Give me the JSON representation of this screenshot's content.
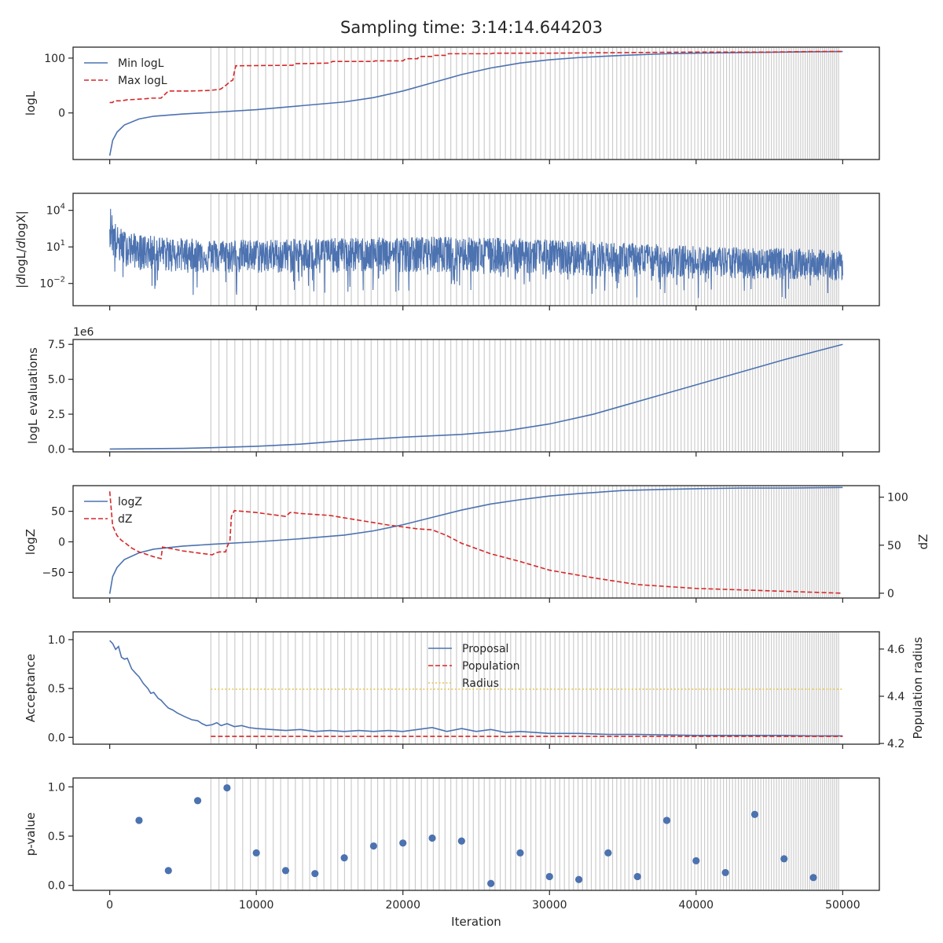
{
  "title": "Sampling time: 3:14:14.644203",
  "colors": {
    "blue": "#4c72b0",
    "red": "#d62728",
    "yellow": "#e8c547",
    "grid": "#cccccc",
    "axis": "#262626"
  },
  "chart_data": [
    {
      "type": "line",
      "ylabel": "logL",
      "xlim": [
        -2500,
        52500
      ],
      "ylim": [
        -85,
        120
      ],
      "yticks": [
        "0",
        "100"
      ],
      "legend": "top-left",
      "series": [
        {
          "name": "Min logL",
          "style": "solid",
          "color": "#4c72b0",
          "x": [
            0,
            200,
            500,
            1000,
            2000,
            3000,
            5000,
            7000,
            10000,
            13000,
            16000,
            18000,
            20000,
            22000,
            24000,
            26000,
            28000,
            30000,
            32000,
            35000,
            38000,
            40000,
            43000,
            46000,
            50000
          ],
          "y": [
            -78,
            -50,
            -35,
            -22,
            -11,
            -6,
            -2,
            1,
            6,
            13,
            20,
            28,
            40,
            55,
            70,
            82,
            91,
            97,
            101,
            105,
            108,
            109,
            110,
            111,
            112
          ]
        },
        {
          "name": "Max logL",
          "style": "dashed",
          "color": "#d62728",
          "x": [
            0,
            200,
            300,
            800,
            1200,
            1300,
            2500,
            2800,
            3000,
            3200,
            3500,
            4000,
            5500,
            6800,
            7500,
            7600,
            8000,
            8200,
            8400,
            8500,
            8600,
            12500,
            12600,
            13000,
            13300,
            15000,
            15200,
            18000,
            18100,
            20000,
            20200,
            21000,
            21100,
            22000,
            22100,
            23000,
            23100,
            26000,
            26200,
            30000,
            35000,
            40000,
            45000,
            48000,
            50000
          ],
          "y": [
            19,
            19,
            22,
            22,
            24,
            24,
            26,
            27,
            27,
            27,
            27,
            40,
            40,
            41,
            43,
            44,
            52,
            57,
            60,
            75,
            86,
            87,
            90,
            90,
            90,
            91,
            94,
            94,
            95,
            95,
            99,
            99,
            103,
            103,
            105,
            105,
            108,
            108,
            109,
            109,
            110,
            111,
            111,
            112,
            112
          ]
        }
      ]
    },
    {
      "type": "line",
      "ylabel": "|dlogL/dlogX|",
      "yscale": "log",
      "xlim": [
        -2500,
        52500
      ],
      "ylim": [
        0.00015,
        250000
      ],
      "yticks": [
        "10^4",
        "10^1",
        "10^-2"
      ],
      "series": [
        {
          "name": "",
          "style": "solid",
          "color": "#4c72b0",
          "x": [
            0,
            200,
            500,
            1000,
            2000,
            4000,
            7000,
            10000,
            14000,
            18000,
            22000,
            26000,
            30000,
            34000,
            38000,
            42000,
            46000,
            50000
          ],
          "upper": [
            25000,
            2000,
            500,
            200,
            100,
            60,
            40,
            40,
            50,
            60,
            70,
            60,
            40,
            25,
            15,
            10,
            8,
            5
          ],
          "median": [
            800,
            60,
            20,
            10,
            5,
            3,
            2,
            2,
            2.5,
            3,
            3.5,
            2.5,
            1.5,
            1,
            0.7,
            0.5,
            0.4,
            0.3
          ],
          "lower": [
            0.05,
            0.01,
            0.005,
            0.003,
            0.002,
            0.001,
            0.001,
            0.001,
            0.001,
            0.001,
            0.001,
            0.001,
            0.0008,
            0.0006,
            0.0005,
            0.0005,
            0.0005,
            0.0005
          ]
        }
      ]
    },
    {
      "type": "line",
      "ylabel": "logL evaluations",
      "offset_text": "1e6",
      "xlim": [
        -2500,
        52500
      ],
      "ylim": [
        -0.2,
        7.85
      ],
      "yticks": [
        "0.0",
        "2.5",
        "5.0",
        "7.5"
      ],
      "series": [
        {
          "name": "",
          "style": "solid",
          "color": "#4c72b0",
          "x": [
            0,
            5000,
            7000,
            10000,
            13000,
            16000,
            20000,
            24000,
            27000,
            30000,
            33000,
            36000,
            40000,
            43000,
            46000,
            50000
          ],
          "y": [
            0.0,
            0.05,
            0.1,
            0.2,
            0.35,
            0.6,
            0.85,
            1.05,
            1.3,
            1.8,
            2.5,
            3.4,
            4.6,
            5.5,
            6.4,
            7.5
          ]
        }
      ]
    },
    {
      "type": "line",
      "ylabel": "logZ",
      "y2label": "dZ",
      "xlim": [
        -2500,
        52500
      ],
      "ylim": [
        -92,
        92
      ],
      "y2lim": [
        -5,
        112
      ],
      "yticks": [
        "50",
        "0",
        "−50"
      ],
      "y2ticks": [
        "100",
        "50",
        "0"
      ],
      "legend": "top-left",
      "series": [
        {
          "name": "logZ",
          "style": "solid",
          "color": "#4c72b0",
          "axis": "left",
          "x": [
            0,
            200,
            500,
            1000,
            2000,
            3000,
            5000,
            7000,
            10000,
            13000,
            16000,
            18000,
            20000,
            22000,
            24000,
            26000,
            28000,
            30000,
            32000,
            35000,
            38000,
            40000,
            43000,
            46000,
            50000
          ],
          "y": [
            -85,
            -57,
            -42,
            -29,
            -18,
            -12,
            -7,
            -4,
            0,
            5,
            11,
            18,
            28,
            40,
            52,
            62,
            69,
            75,
            79,
            84,
            86,
            87,
            88,
            88,
            89
          ]
        },
        {
          "name": "dZ",
          "style": "dashed",
          "color": "#d62728",
          "axis": "right",
          "x": [
            0,
            200,
            500,
            800,
            1000,
            1500,
            2000,
            3000,
            3500,
            3600,
            4000,
            5000,
            6000,
            7000,
            7200,
            7500,
            7900,
            8000,
            8200,
            8300,
            8500,
            10000,
            12000,
            12300,
            12500,
            13000,
            15000,
            17000,
            19000,
            21000,
            22000,
            23000,
            24000,
            26000,
            28000,
            30000,
            33000,
            36000,
            40000,
            44000,
            48000,
            50000
          ],
          "y": [
            106,
            70,
            60,
            55,
            53,
            47,
            43,
            38,
            36,
            48,
            47,
            44,
            42,
            40,
            42,
            43,
            43,
            48,
            55,
            80,
            86,
            84,
            80,
            84,
            84,
            83,
            81,
            76,
            71,
            67,
            66,
            60,
            52,
            41,
            33,
            24,
            16,
            9,
            5,
            3,
            1,
            0
          ]
        }
      ]
    },
    {
      "type": "line",
      "ylabel": "Acceptance",
      "y2label": "Population radius",
      "xlim": [
        -2500,
        52500
      ],
      "ylim": [
        -0.07,
        1.08
      ],
      "y2lim": [
        4.197,
        4.673
      ],
      "yticks": [
        "0.0",
        "0.5",
        "1.0"
      ],
      "y2ticks": [
        "4.2",
        "4.4",
        "4.6"
      ],
      "legend": "top-center",
      "series": [
        {
          "name": "Proposal",
          "style": "solid",
          "color": "#4c72b0",
          "axis": "left",
          "x": [
            0,
            200,
            400,
            600,
            800,
            1000,
            1200,
            1500,
            1800,
            2000,
            2300,
            2600,
            2800,
            3000,
            3300,
            3500,
            3800,
            4000,
            4300,
            4600,
            5000,
            5300,
            5600,
            6000,
            6300,
            6600,
            7000,
            7300,
            7600,
            8000,
            8500,
            9000,
            9500,
            10000,
            11000,
            12000,
            13000,
            14000,
            15000,
            16000,
            17000,
            18000,
            19000,
            20000,
            21000,
            22000,
            23000,
            24000,
            25000,
            26000,
            27000,
            28000,
            29000,
            30000,
            32000,
            34000,
            36000,
            38000,
            40000,
            42000,
            44000,
            46000,
            48000,
            50000
          ],
          "y": [
            0.99,
            0.96,
            0.9,
            0.93,
            0.82,
            0.8,
            0.81,
            0.7,
            0.65,
            0.62,
            0.55,
            0.5,
            0.45,
            0.46,
            0.4,
            0.38,
            0.33,
            0.3,
            0.28,
            0.25,
            0.22,
            0.2,
            0.18,
            0.17,
            0.14,
            0.12,
            0.13,
            0.15,
            0.12,
            0.14,
            0.11,
            0.12,
            0.1,
            0.09,
            0.08,
            0.07,
            0.08,
            0.06,
            0.07,
            0.06,
            0.07,
            0.06,
            0.07,
            0.06,
            0.08,
            0.1,
            0.06,
            0.09,
            0.06,
            0.08,
            0.05,
            0.06,
            0.05,
            0.04,
            0.04,
            0.03,
            0.03,
            0.025,
            0.02,
            0.02,
            0.02,
            0.02,
            0.015,
            0.015
          ]
        },
        {
          "name": "Population",
          "style": "dashed",
          "color": "#d62728",
          "axis": "left",
          "x": [
            6900,
            50000
          ],
          "y": [
            0.01,
            0.01
          ]
        },
        {
          "name": "Radius",
          "style": "dotted",
          "color": "#e8c547",
          "axis": "right",
          "x": [
            6900,
            50000
          ],
          "y": [
            4.43,
            4.43
          ]
        }
      ]
    },
    {
      "type": "scatter",
      "ylabel": "p-value",
      "xlabel": "Iteration",
      "xlim": [
        -2500,
        52500
      ],
      "ylim": [
        -0.05,
        1.09
      ],
      "xticks": [
        0,
        10000,
        20000,
        30000,
        40000,
        50000
      ],
      "yticks": [
        "0.0",
        "0.5",
        "1.0"
      ],
      "series": [
        {
          "name": "",
          "color": "#4c72b0",
          "x": [
            2000,
            4000,
            6000,
            8000,
            10000,
            12000,
            14000,
            16000,
            18000,
            20000,
            22000,
            24000,
            26000,
            28000,
            30000,
            32000,
            34000,
            36000,
            38000,
            40000,
            42000,
            44000,
            46000,
            48000
          ],
          "y": [
            0.66,
            0.15,
            0.86,
            0.99,
            0.33,
            0.15,
            0.12,
            0.28,
            0.4,
            0.43,
            0.48,
            0.45,
            0.02,
            0.33,
            0.09,
            0.06,
            0.33,
            0.09,
            0.66,
            0.25,
            0.13,
            0.72,
            0.27,
            0.08
          ]
        }
      ]
    }
  ],
  "dead_point_iterations_hint": {
    "start": 6900,
    "end": 49800,
    "note_step_start": 550,
    "note_step_end": 130
  }
}
